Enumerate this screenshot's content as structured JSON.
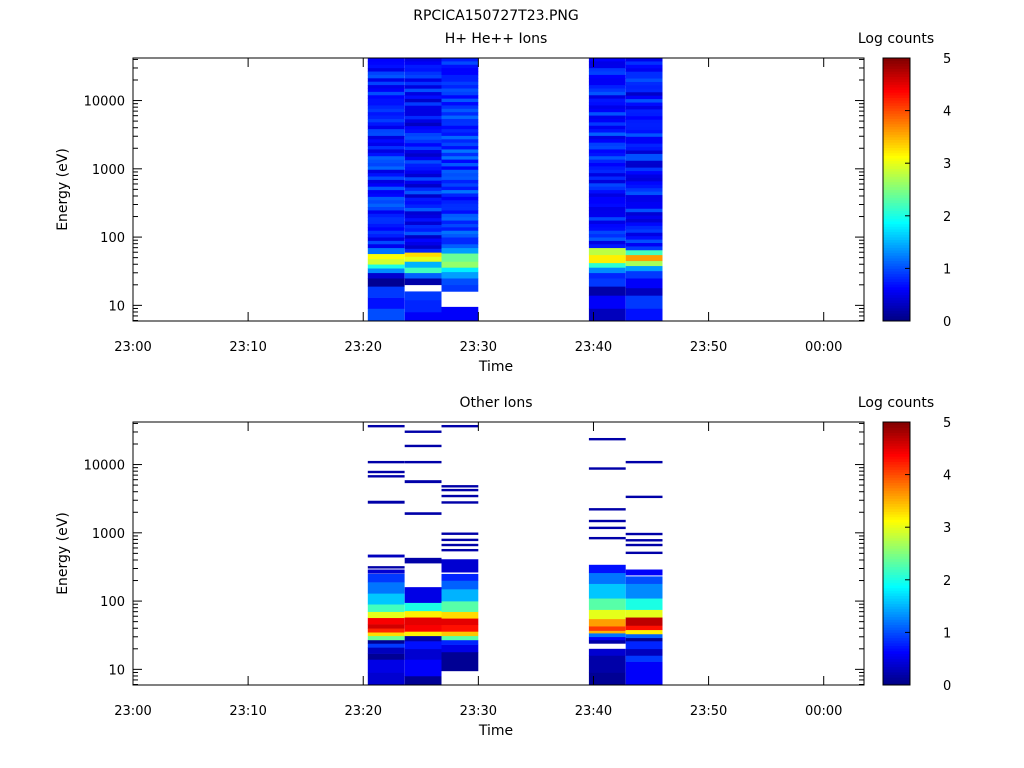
{
  "figure_title": "RPCICA150727T23.PNG",
  "colors": {
    "axes": "#000000",
    "background": "#ffffff",
    "colormap": "jet"
  },
  "colorbar": {
    "label": "Log counts",
    "ticks": [
      "0",
      "1",
      "2",
      "3",
      "4",
      "5"
    ],
    "range": [
      0,
      5
    ]
  },
  "chart_data": [
    {
      "type": "heatmap",
      "title": "H+ He++ Ions",
      "xlabel": "Time",
      "ylabel": "Energy (eV)",
      "xticks": [
        "23:00",
        "23:10",
        "23:20",
        "23:30",
        "23:40",
        "23:50",
        "00:00"
      ],
      "xlim_minutes": [
        0,
        63.5
      ],
      "yticks": [
        "10",
        "100",
        "1000",
        "10000"
      ],
      "ylim": [
        5.9,
        42000
      ],
      "yscale": "log",
      "color_scale": "Log counts",
      "color_range": [
        0,
        5
      ],
      "time_bins": [
        {
          "start": "23:20",
          "end": "23:23",
          "t0": 20.4,
          "t1": 23.6,
          "seed": 11,
          "bands": [
            {
              "emin": 5.9,
              "emax": 9,
              "v": 1.0
            },
            {
              "emin": 9,
              "emax": 13,
              "v": 0.7
            },
            {
              "emin": 13,
              "emax": 19,
              "v": 0.9
            },
            {
              "emin": 19,
              "emax": 25,
              "v": 0.1
            },
            {
              "emin": 25,
              "emax": 30,
              "v": 0.4
            },
            {
              "emin": 30,
              "emax": 35,
              "v": 1.3
            },
            {
              "emin": 35,
              "emax": 40,
              "v": 2.0
            },
            {
              "emin": 40,
              "emax": 48,
              "v": 2.9
            },
            {
              "emin": 48,
              "emax": 57,
              "v": 3.1
            },
            {
              "emin": 57,
              "emax": 70,
              "v": 1.2
            },
            {
              "emin": 70,
              "emax": 42000,
              "v": 0.8,
              "jitter": 0.35
            }
          ]
        },
        {
          "start": "23:23",
          "end": "23:27",
          "t0": 23.6,
          "t1": 26.8,
          "seed": 23,
          "bands": [
            {
              "emin": 5.9,
              "emax": 8,
              "v": 0.6
            },
            {
              "emin": 8,
              "emax": 12,
              "v": 0.8
            },
            {
              "emin": 12,
              "emax": 16,
              "v": 0.9
            },
            {
              "emin": 16,
              "emax": 20,
              "v": -1
            },
            {
              "emin": 20,
              "emax": 25,
              "v": 0.2
            },
            {
              "emin": 25,
              "emax": 30,
              "v": 1.1
            },
            {
              "emin": 30,
              "emax": 36,
              "v": 2.2
            },
            {
              "emin": 36,
              "emax": 44,
              "v": 1.5
            },
            {
              "emin": 44,
              "emax": 52,
              "v": 3.0
            },
            {
              "emin": 52,
              "emax": 60,
              "v": 3.3
            },
            {
              "emin": 60,
              "emax": 42000,
              "v": 0.7,
              "jitter": 0.4
            }
          ]
        },
        {
          "start": "23:27",
          "end": "23:30",
          "t0": 26.8,
          "t1": 30.0,
          "seed": 37,
          "bands": [
            {
              "emin": 5.9,
              "emax": 9.5,
              "v": 0.6
            },
            {
              "emin": 9.5,
              "emax": 16,
              "v": -1
            },
            {
              "emin": 16,
              "emax": 20,
              "v": 0.9
            },
            {
              "emin": 20,
              "emax": 25,
              "v": 1.0
            },
            {
              "emin": 25,
              "emax": 31,
              "v": 1.4
            },
            {
              "emin": 31,
              "emax": 36,
              "v": 1.8
            },
            {
              "emin": 36,
              "emax": 44,
              "v": 2.6
            },
            {
              "emin": 44,
              "emax": 58,
              "v": 2.4
            },
            {
              "emin": 58,
              "emax": 70,
              "v": 1.4
            },
            {
              "emin": 70,
              "emax": 42000,
              "v": 0.9,
              "jitter": 0.3
            }
          ]
        },
        {
          "start": "23:40",
          "end": "23:43",
          "t0": 39.6,
          "t1": 42.8,
          "seed": 53,
          "bands": [
            {
              "emin": 5.9,
              "emax": 9,
              "v": 0.3
            },
            {
              "emin": 9,
              "emax": 14,
              "v": 0.6
            },
            {
              "emin": 14,
              "emax": 19,
              "v": 0.2
            },
            {
              "emin": 19,
              "emax": 25,
              "v": 0.9
            },
            {
              "emin": 25,
              "emax": 30,
              "v": 0.8
            },
            {
              "emin": 30,
              "emax": 36,
              "v": 1.3
            },
            {
              "emin": 36,
              "emax": 42,
              "v": 2.1
            },
            {
              "emin": 42,
              "emax": 55,
              "v": 3.2
            },
            {
              "emin": 55,
              "emax": 70,
              "v": 2.8
            },
            {
              "emin": 70,
              "emax": 42000,
              "v": 0.8,
              "jitter": 0.35
            }
          ]
        },
        {
          "start": "23:43",
          "end": "23:46",
          "t0": 42.8,
          "t1": 46.0,
          "seed": 71,
          "bands": [
            {
              "emin": 5.9,
              "emax": 9,
              "v": 0.7
            },
            {
              "emin": 9,
              "emax": 14,
              "v": 0.9
            },
            {
              "emin": 14,
              "emax": 18,
              "v": 0.3
            },
            {
              "emin": 18,
              "emax": 25,
              "v": 0.6
            },
            {
              "emin": 25,
              "emax": 32,
              "v": 0.9
            },
            {
              "emin": 32,
              "emax": 38,
              "v": 1.4
            },
            {
              "emin": 38,
              "emax": 45,
              "v": 2.7
            },
            {
              "emin": 45,
              "emax": 55,
              "v": 3.6
            },
            {
              "emin": 55,
              "emax": 65,
              "v": 2.2
            },
            {
              "emin": 65,
              "emax": 42000,
              "v": 0.7,
              "jitter": 0.35
            }
          ]
        }
      ]
    },
    {
      "type": "heatmap",
      "title": "Other Ions",
      "xlabel": "Time",
      "ylabel": "Energy (eV)",
      "xticks": [
        "23:00",
        "23:10",
        "23:20",
        "23:30",
        "23:40",
        "23:50",
        "00:00"
      ],
      "xlim_minutes": [
        0,
        63.5
      ],
      "yticks": [
        "10",
        "100",
        "1000",
        "10000"
      ],
      "ylim": [
        5.9,
        42000
      ],
      "yscale": "log",
      "color_scale": "Log counts",
      "color_range": [
        0,
        5
      ],
      "time_bins": [
        {
          "start": "23:20",
          "end": "23:23",
          "t0": 20.4,
          "t1": 23.6,
          "seed": 13,
          "bands": [
            {
              "emin": 5.9,
              "emax": 9,
              "v": 0.4
            },
            {
              "emin": 9,
              "emax": 14,
              "v": 0.5
            },
            {
              "emin": 14,
              "emax": 17,
              "v": 0.1
            },
            {
              "emin": 17,
              "emax": 21,
              "v": 0.3
            },
            {
              "emin": 21,
              "emax": 24,
              "v": 0.9
            },
            {
              "emin": 24,
              "emax": 27,
              "v": 0.1
            },
            {
              "emin": 27,
              "emax": 31,
              "v": 2.4
            },
            {
              "emin": 31,
              "emax": 35,
              "v": 3.3
            },
            {
              "emin": 35,
              "emax": 40,
              "v": 4.2
            },
            {
              "emin": 40,
              "emax": 46,
              "v": 4.6
            },
            {
              "emin": 46,
              "emax": 57,
              "v": 4.4
            },
            {
              "emin": 57,
              "emax": 70,
              "v": 3.0
            },
            {
              "emin": 70,
              "emax": 90,
              "v": 2.2
            },
            {
              "emin": 90,
              "emax": 130,
              "v": 1.6
            },
            {
              "emin": 130,
              "emax": 190,
              "v": 1.2
            },
            {
              "emin": 190,
              "emax": 250,
              "v": 0.9
            },
            {
              "emin": 255,
              "emax": 290,
              "v": 0.4
            },
            {
              "emin": 305,
              "emax": 325,
              "v": 0.2
            },
            {
              "emin": 440,
              "emax": 480,
              "v": 0.3
            },
            {
              "emin": 2700,
              "emax": 2950,
              "v": 0.2
            },
            {
              "emin": 6600,
              "emax": 7000,
              "v": 0.2
            },
            {
              "emin": 7700,
              "emax": 8100,
              "v": 0.2
            },
            {
              "emin": 10800,
              "emax": 11300,
              "v": 0.2
            },
            {
              "emin": 36000,
              "emax": 38000,
              "v": 0.2
            }
          ]
        },
        {
          "start": "23:23",
          "end": "23:27",
          "t0": 23.6,
          "t1": 26.8,
          "seed": 29,
          "bands": [
            {
              "emin": 5.9,
              "emax": 8,
              "v": 0.1
            },
            {
              "emin": 8,
              "emax": 14,
              "v": 0.6
            },
            {
              "emin": 14,
              "emax": 20,
              "v": 0.4
            },
            {
              "emin": 20,
              "emax": 26,
              "v": 0.7
            },
            {
              "emin": 26,
              "emax": 31,
              "v": 0.2
            },
            {
              "emin": 31,
              "emax": 36,
              "v": 3.2
            },
            {
              "emin": 36,
              "emax": 45,
              "v": 4.4
            },
            {
              "emin": 45,
              "emax": 58,
              "v": 4.5
            },
            {
              "emin": 58,
              "emax": 72,
              "v": 3.2
            },
            {
              "emin": 72,
              "emax": 95,
              "v": 2.0
            },
            {
              "emin": 95,
              "emax": 160,
              "v": 0.5
            },
            {
              "emin": 360,
              "emax": 430,
              "v": 0.2
            },
            {
              "emin": 1850,
              "emax": 2000,
              "v": 0.2
            },
            {
              "emin": 5400,
              "emax": 5900,
              "v": 0.2
            },
            {
              "emin": 10800,
              "emax": 11300,
              "v": 0.2
            },
            {
              "emin": 18500,
              "emax": 19500,
              "v": 0.2
            },
            {
              "emin": 30000,
              "emax": 31500,
              "v": 0.2
            }
          ]
        },
        {
          "start": "23:27",
          "end": "23:30",
          "t0": 26.8,
          "t1": 30.0,
          "seed": 41,
          "bands": [
            {
              "emin": 9.5,
              "emax": 18,
              "v": 0.1
            },
            {
              "emin": 18,
              "emax": 23,
              "v": 0.5
            },
            {
              "emin": 23,
              "emax": 27,
              "v": 0.8
            },
            {
              "emin": 27,
              "emax": 31,
              "v": 2.3
            },
            {
              "emin": 31,
              "emax": 36,
              "v": 3.4
            },
            {
              "emin": 36,
              "emax": 45,
              "v": 4.3
            },
            {
              "emin": 45,
              "emax": 56,
              "v": 4.5
            },
            {
              "emin": 56,
              "emax": 70,
              "v": 3.3
            },
            {
              "emin": 70,
              "emax": 100,
              "v": 2.3
            },
            {
              "emin": 100,
              "emax": 150,
              "v": 1.5
            },
            {
              "emin": 150,
              "emax": 200,
              "v": 1.1
            },
            {
              "emin": 200,
              "emax": 250,
              "v": 0.8
            },
            {
              "emin": 265,
              "emax": 410,
              "v": 0.4
            },
            {
              "emin": 550,
              "emax": 580,
              "v": 0.2
            },
            {
              "emin": 650,
              "emax": 690,
              "v": 0.2
            },
            {
              "emin": 780,
              "emax": 820,
              "v": 0.2
            },
            {
              "emin": 960,
              "emax": 1010,
              "v": 0.2
            },
            {
              "emin": 2700,
              "emax": 2900,
              "v": 0.2
            },
            {
              "emin": 3400,
              "emax": 3600,
              "v": 0.2
            },
            {
              "emin": 4200,
              "emax": 4400,
              "v": 0.2
            },
            {
              "emin": 4800,
              "emax": 5000,
              "v": 0.2
            },
            {
              "emin": 36000,
              "emax": 38000,
              "v": 0.2
            }
          ]
        },
        {
          "start": "23:40",
          "end": "23:43",
          "t0": 39.6,
          "t1": 42.8,
          "seed": 59,
          "bands": [
            {
              "emin": 5.9,
              "emax": 9,
              "v": 0.1
            },
            {
              "emin": 9,
              "emax": 14,
              "v": 0.2
            },
            {
              "emin": 14,
              "emax": 16,
              "v": 0.2
            },
            {
              "emin": 16,
              "emax": 20,
              "v": 0.4
            },
            {
              "emin": 24,
              "emax": 27,
              "v": 0.2
            },
            {
              "emin": 27,
              "emax": 30,
              "v": 0.6
            },
            {
              "emin": 30,
              "emax": 34,
              "v": 1.2
            },
            {
              "emin": 34,
              "emax": 37,
              "v": 3.5
            },
            {
              "emin": 37,
              "emax": 43,
              "v": 4.1
            },
            {
              "emin": 43,
              "emax": 55,
              "v": 3.6
            },
            {
              "emin": 55,
              "emax": 75,
              "v": 3.0
            },
            {
              "emin": 75,
              "emax": 110,
              "v": 2.3
            },
            {
              "emin": 110,
              "emax": 180,
              "v": 1.6
            },
            {
              "emin": 180,
              "emax": 260,
              "v": 1.2
            },
            {
              "emin": 260,
              "emax": 340,
              "v": 0.7
            },
            {
              "emin": 820,
              "emax": 870,
              "v": 0.2
            },
            {
              "emin": 1150,
              "emax": 1230,
              "v": 0.2
            },
            {
              "emin": 1450,
              "emax": 1550,
              "v": 0.2
            },
            {
              "emin": 2150,
              "emax": 2300,
              "v": 0.2
            },
            {
              "emin": 8600,
              "emax": 9100,
              "v": 0.2
            },
            {
              "emin": 23000,
              "emax": 24500,
              "v": 0.2
            }
          ]
        },
        {
          "start": "23:43",
          "end": "23:46",
          "t0": 42.8,
          "t1": 46.0,
          "seed": 83,
          "bands": [
            {
              "emin": 5.9,
              "emax": 13,
              "v": 0.6
            },
            {
              "emin": 13,
              "emax": 16,
              "v": 0.9
            },
            {
              "emin": 16,
              "emax": 20,
              "v": 0.3
            },
            {
              "emin": 20,
              "emax": 26,
              "v": 0.8
            },
            {
              "emin": 26,
              "emax": 29,
              "v": 0.1
            },
            {
              "emin": 29,
              "emax": 33,
              "v": 1.1
            },
            {
              "emin": 33,
              "emax": 38,
              "v": 3.2
            },
            {
              "emin": 38,
              "emax": 44,
              "v": 4.3
            },
            {
              "emin": 44,
              "emax": 58,
              "v": 4.7
            },
            {
              "emin": 58,
              "emax": 75,
              "v": 3.0
            },
            {
              "emin": 75,
              "emax": 110,
              "v": 2.0
            },
            {
              "emin": 110,
              "emax": 180,
              "v": 1.3
            },
            {
              "emin": 180,
              "emax": 230,
              "v": 1.0
            },
            {
              "emin": 240,
              "emax": 290,
              "v": 0.6
            },
            {
              "emin": 500,
              "emax": 530,
              "v": 0.2
            },
            {
              "emin": 650,
              "emax": 690,
              "v": 0.2
            },
            {
              "emin": 770,
              "emax": 810,
              "v": 0.2
            },
            {
              "emin": 950,
              "emax": 1000,
              "v": 0.2
            },
            {
              "emin": 3300,
              "emax": 3500,
              "v": 0.2
            },
            {
              "emin": 10800,
              "emax": 11300,
              "v": 0.2
            }
          ]
        }
      ]
    }
  ]
}
